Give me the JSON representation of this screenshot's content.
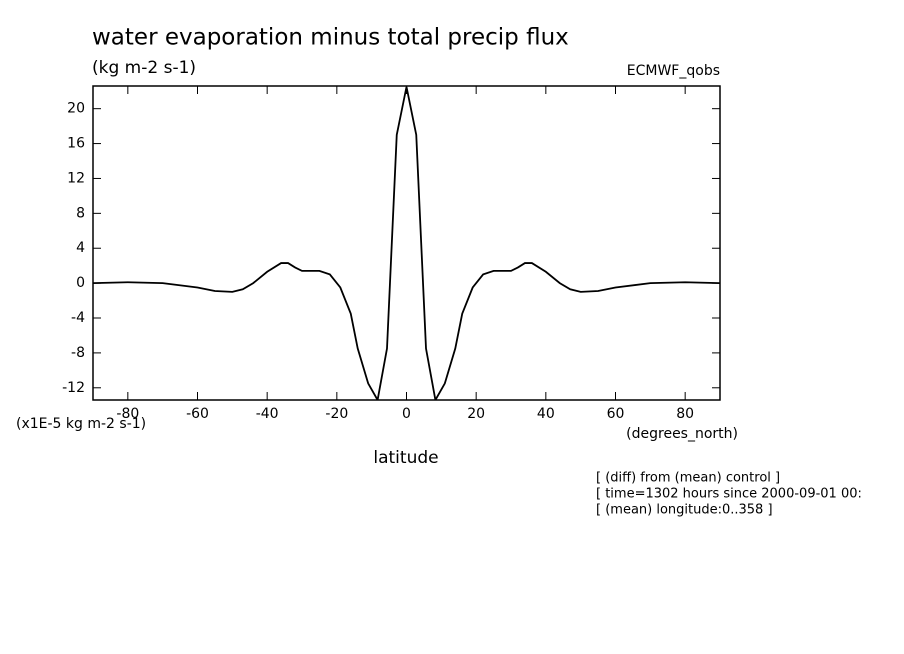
{
  "chart_data": {
    "type": "line",
    "title": "water evaporation minus total precip flux",
    "subtitle": "(kg m-2 s-1)",
    "source": "ECMWF_qobs",
    "y_unit_label": "(x1E-5 kg m-2 s-1)",
    "x_unit_label": "(degrees_north)",
    "x_label": "latitude",
    "notes": [
      "[ (diff) from (mean) control ]",
      "[ time=1302 hours since 2000-09-01 00:",
      "[ (mean) longitude:0..358 ]"
    ],
    "x": [
      -90,
      -80,
      -70,
      -60,
      -55,
      -50,
      -47,
      -44,
      -40,
      -36,
      -34,
      -32,
      -30,
      -25,
      -22,
      -19,
      -16,
      -14,
      -11,
      -8.3,
      -5.6,
      -2.8,
      0,
      2.8,
      5.6,
      8.3,
      11,
      14,
      16,
      19,
      22,
      25,
      30,
      32,
      34,
      36,
      40,
      44,
      47,
      50,
      55,
      60,
      70,
      80,
      90
    ],
    "series": [
      {
        "name": "water evaporation minus total precip flux",
        "color": "#000000",
        "values": [
          0,
          0.1,
          0,
          -0.5,
          -0.9,
          -1,
          -0.7,
          0,
          1.3,
          2.3,
          2.3,
          1.8,
          1.4,
          1.4,
          1.0,
          -0.5,
          -3.5,
          -7.5,
          -11.5,
          -13.4,
          -7.5,
          17,
          22.5,
          17,
          -7.5,
          -13.4,
          -11.5,
          -7.5,
          -3.5,
          -0.5,
          1.0,
          1.4,
          1.4,
          1.8,
          2.3,
          2.3,
          1.3,
          0,
          -0.7,
          -1,
          -0.9,
          -0.5,
          0,
          0.1,
          0
        ]
      }
    ],
    "xlim": [
      -90,
      90
    ],
    "ylim": [
      -13.4,
      22.6
    ],
    "xticks": [
      -80,
      -60,
      -40,
      -20,
      0,
      20,
      40,
      60,
      80
    ],
    "yticks": [
      -12,
      -8,
      -4,
      0,
      4,
      8,
      12,
      16,
      20
    ]
  }
}
